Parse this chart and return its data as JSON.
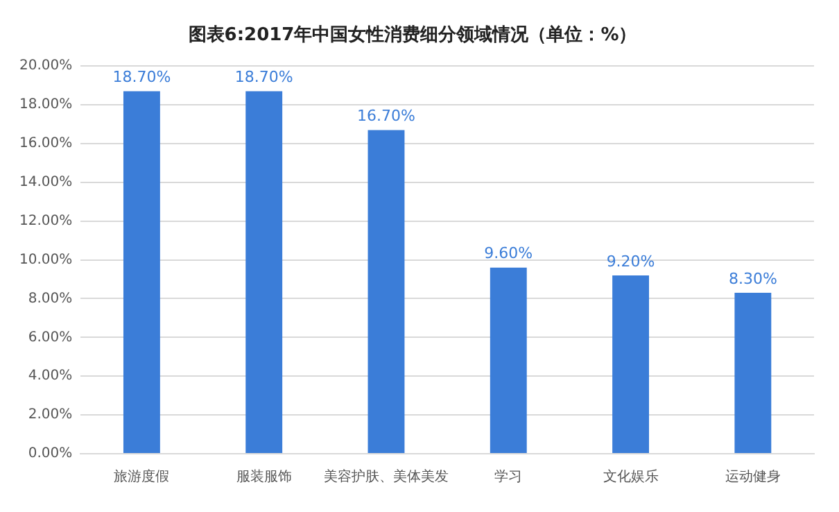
{
  "chart_data": {
    "type": "bar",
    "title": "图表6:2017年中国女性消费细分领域情况（单位：%）",
    "categories": [
      "旅游度假",
      "服装服饰",
      "美容护肤、美体美发",
      "学习",
      "文化娱乐",
      "运动健身"
    ],
    "values": [
      18.7,
      18.7,
      16.7,
      9.6,
      9.2,
      8.3
    ],
    "value_labels": [
      "18.70%",
      "18.70%",
      "16.70%",
      "9.60%",
      "9.20%",
      "8.30%"
    ],
    "color": "#3b7dd8",
    "ylim": [
      0,
      20
    ],
    "yticks": [
      {
        "value": 0,
        "label": "0.00%"
      },
      {
        "value": 2,
        "label": "2.00%"
      },
      {
        "value": 4,
        "label": "4.00%"
      },
      {
        "value": 6,
        "label": "6.00%"
      },
      {
        "value": 8,
        "label": "8.00%"
      },
      {
        "value": 10,
        "label": "10.00%"
      },
      {
        "value": 12,
        "label": "12.00%"
      },
      {
        "value": 14,
        "label": "14.00%"
      },
      {
        "value": 16,
        "label": "16.00%"
      },
      {
        "value": 18,
        "label": "18.00%"
      },
      {
        "value": 20,
        "label": "20.00%"
      }
    ],
    "grid": "y"
  }
}
